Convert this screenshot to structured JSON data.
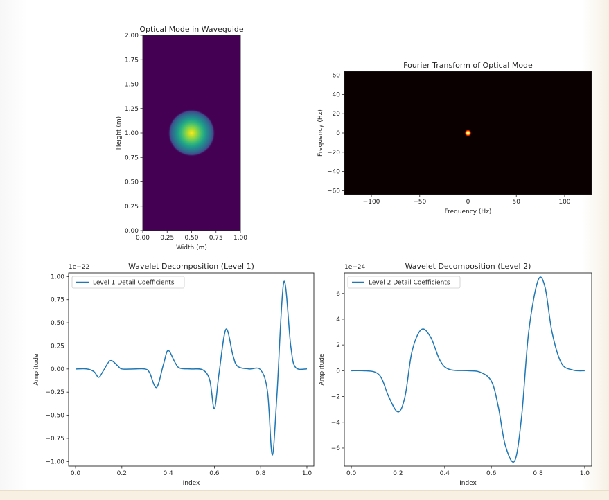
{
  "chart_data": [
    {
      "type": "heatmap",
      "title": "Optical Mode in Waveguide",
      "xlabel": "Width (m)",
      "ylabel": "Height (m)",
      "xlim": [
        0,
        1
      ],
      "ylim": [
        0,
        2
      ],
      "xticks": [
        "0.00",
        "0.25",
        "0.50",
        "0.75",
        "1.00"
      ],
      "yticks": [
        "0.00",
        "0.25",
        "0.50",
        "0.75",
        "1.00",
        "1.25",
        "1.50",
        "1.75",
        "2.00"
      ],
      "peak": {
        "x": 0.5,
        "y": 1.0
      },
      "colormap": "viridis"
    },
    {
      "type": "heatmap",
      "title": "Fourier Transform of Optical Mode",
      "xlabel": "Frequency (Hz)",
      "ylabel": "Frequency (Hz)",
      "xlim": [
        -128,
        128
      ],
      "ylim": [
        -64,
        64
      ],
      "xticks": [
        "−100",
        "−50",
        "0",
        "50",
        "100"
      ],
      "yticks": [
        "−60",
        "−40",
        "−20",
        "0",
        "20",
        "40",
        "60"
      ],
      "peak": {
        "x": 0,
        "y": 0
      },
      "colormap": "hot"
    },
    {
      "type": "line",
      "title": "Wavelet Decomposition (Level 1)",
      "xlabel": "Index",
      "ylabel": "Amplitude",
      "scale_label": "1e−22",
      "xlim": [
        -0.03,
        1.03
      ],
      "ylim": [
        -1.05,
        1.04
      ],
      "xticks": [
        "0.0",
        "0.2",
        "0.4",
        "0.6",
        "0.8",
        "1.0"
      ],
      "yticks": [
        "−1.00",
        "−0.75",
        "−0.50",
        "−0.25",
        "0.00",
        "0.25",
        "0.50",
        "0.75",
        "1.00"
      ],
      "legend_position": "top-left",
      "series": [
        {
          "name": "Level 1 Detail Coefficients",
          "color": "#1f77b4",
          "x": [
            0.0,
            0.05,
            0.08,
            0.1,
            0.12,
            0.15,
            0.18,
            0.2,
            0.25,
            0.3,
            0.32,
            0.35,
            0.38,
            0.4,
            0.43,
            0.45,
            0.5,
            0.55,
            0.58,
            0.6,
            0.62,
            0.65,
            0.68,
            0.7,
            0.75,
            0.8,
            0.83,
            0.85,
            0.87,
            0.9,
            0.93,
            0.95,
            1.0
          ],
          "values": [
            0.0,
            0.0,
            -0.03,
            -0.09,
            -0.02,
            0.09,
            0.04,
            0.0,
            0.0,
            0.0,
            -0.04,
            -0.2,
            0.05,
            0.2,
            0.07,
            0.01,
            0.0,
            -0.01,
            -0.12,
            -0.43,
            -0.05,
            0.43,
            0.15,
            0.03,
            0.0,
            -0.01,
            -0.25,
            -0.93,
            -0.3,
            0.94,
            0.25,
            0.02,
            0.0
          ]
        }
      ]
    },
    {
      "type": "line",
      "title": "Wavelet Decomposition (Level 2)",
      "xlabel": "Index",
      "ylabel": "Amplitude",
      "scale_label": "1e−24",
      "xlim": [
        -0.03,
        1.03
      ],
      "ylim": [
        -7.4,
        7.6
      ],
      "xticks": [
        "0.0",
        "0.2",
        "0.4",
        "0.6",
        "0.8",
        "1.0"
      ],
      "yticks": [
        "−6",
        "−4",
        "−2",
        "0",
        "2",
        "4",
        "6"
      ],
      "legend_position": "top-left",
      "series": [
        {
          "name": "Level 2 Detail Coefficients",
          "color": "#1f77b4",
          "x": [
            0.0,
            0.05,
            0.1,
            0.13,
            0.16,
            0.2,
            0.23,
            0.26,
            0.3,
            0.34,
            0.38,
            0.42,
            0.5,
            0.55,
            0.6,
            0.63,
            0.66,
            0.7,
            0.73,
            0.76,
            0.8,
            0.83,
            0.86,
            0.9,
            0.95,
            1.0
          ],
          "values": [
            0.0,
            0.0,
            -0.1,
            -0.6,
            -2.0,
            -3.2,
            -2.0,
            1.5,
            3.2,
            2.6,
            0.8,
            0.1,
            0.0,
            -0.1,
            -0.8,
            -2.8,
            -5.8,
            -7.0,
            -3.5,
            3.0,
            7.0,
            6.5,
            3.0,
            0.6,
            0.05,
            0.0
          ]
        }
      ]
    }
  ]
}
